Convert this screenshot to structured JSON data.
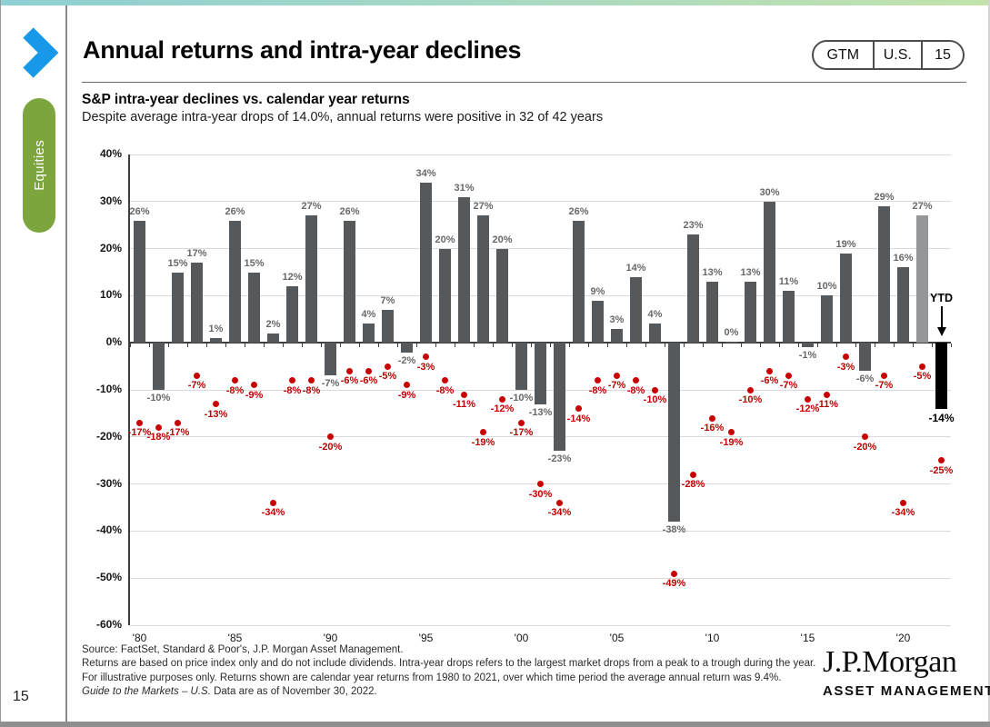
{
  "page": {
    "page_number": "15",
    "sidebar_label": "Equities",
    "header": {
      "title": "Annual returns and intra-year declines",
      "badge": [
        "GTM",
        "U.S.",
        "15"
      ]
    },
    "subtitle_bold": "S&P intra-year declines vs. calendar year returns",
    "subtitle": "Despite average intra-year drops of 14.0%, annual returns were positive in 32 of 42 years",
    "footer": {
      "line1": "Source: FactSet, Standard & Poor's, J.P. Morgan Asset Management.",
      "line2": "Returns are based on price index only and do not include dividends. Intra-year drops refers to the largest market drops from a peak to a trough during the year. For illustrative purposes only. Returns shown are calendar year returns from 1980 to 2021, over which time period the average annual return was 9.4%.",
      "line3_italic": "Guide to the Markets – U.S.",
      "line3_rest": " Data are as of November 30, 2022."
    },
    "logo": {
      "name": "J.P.Morgan",
      "sub": "ASSET MANAGEMENT"
    }
  },
  "chart_data": {
    "type": "bar",
    "title": "S&P intra-year declines vs. calendar year returns",
    "subtitle": "Despite average intra-year drops of 14.0%, annual returns were positive in 32 of 42 years",
    "xlabel": "",
    "ylabel": "",
    "ylim": [
      -60,
      40
    ],
    "grid": true,
    "y_ticks": [
      40,
      30,
      20,
      10,
      0,
      -10,
      -20,
      -30,
      -40,
      -50,
      -60
    ],
    "x_ticks": [
      {
        "label": "'80",
        "index": 0
      },
      {
        "label": "'85",
        "index": 5
      },
      {
        "label": "'90",
        "index": 10
      },
      {
        "label": "'95",
        "index": 15
      },
      {
        "label": "'00",
        "index": 20
      },
      {
        "label": "'05",
        "index": 25
      },
      {
        "label": "'10",
        "index": 30
      },
      {
        "label": "'15",
        "index": 35
      },
      {
        "label": "'20",
        "index": 40
      }
    ],
    "ytd_label": "YTD",
    "colors": {
      "bar": "#56595c",
      "bar_light": "#949698",
      "bar_ytd": "#000000",
      "dot": "#c80000",
      "dot_label": "#c00000",
      "bar_label": "#67686b",
      "sidebar_green": "#7da53d",
      "chevron_blue": "#1898e8"
    },
    "years": [
      {
        "year": 1980,
        "return": 26,
        "decline": -17
      },
      {
        "year": 1981,
        "return": -10,
        "decline": -18
      },
      {
        "year": 1982,
        "return": 15,
        "decline": -17
      },
      {
        "year": 1983,
        "return": 17,
        "decline": -7
      },
      {
        "year": 1984,
        "return": 1,
        "decline": -13
      },
      {
        "year": 1985,
        "return": 26,
        "decline": -8
      },
      {
        "year": 1986,
        "return": 15,
        "decline": -9
      },
      {
        "year": 1987,
        "return": 2,
        "decline": -34
      },
      {
        "year": 1988,
        "return": 12,
        "decline": -8
      },
      {
        "year": 1989,
        "return": 27,
        "decline": -8
      },
      {
        "year": 1990,
        "return": -7,
        "decline": -20
      },
      {
        "year": 1991,
        "return": 26,
        "decline": -6
      },
      {
        "year": 1992,
        "return": 4,
        "decline": -6
      },
      {
        "year": 1993,
        "return": 7,
        "decline": -5
      },
      {
        "year": 1994,
        "return": -2,
        "decline": -9
      },
      {
        "year": 1995,
        "return": 34,
        "decline": -3
      },
      {
        "year": 1996,
        "return": 20,
        "decline": -8
      },
      {
        "year": 1997,
        "return": 31,
        "decline": -11
      },
      {
        "year": 1998,
        "return": 27,
        "decline": -19
      },
      {
        "year": 1999,
        "return": 20,
        "decline": -12
      },
      {
        "year": 2000,
        "return": -10,
        "decline": -17
      },
      {
        "year": 2001,
        "return": -13,
        "decline": -30
      },
      {
        "year": 2002,
        "return": -23,
        "decline": -34
      },
      {
        "year": 2003,
        "return": 26,
        "decline": -14
      },
      {
        "year": 2004,
        "return": 9,
        "decline": -8
      },
      {
        "year": 2005,
        "return": 3,
        "decline": -7
      },
      {
        "year": 2006,
        "return": 14,
        "decline": -8
      },
      {
        "year": 2007,
        "return": 4,
        "decline": -10
      },
      {
        "year": 2008,
        "return": -38,
        "decline": -49
      },
      {
        "year": 2009,
        "return": 23,
        "decline": -28
      },
      {
        "year": 2010,
        "return": 13,
        "decline": -16
      },
      {
        "year": 2011,
        "return": 0,
        "decline": -19
      },
      {
        "year": 2012,
        "return": 13,
        "decline": -10
      },
      {
        "year": 2013,
        "return": 30,
        "decline": -6
      },
      {
        "year": 2014,
        "return": 11,
        "decline": -7
      },
      {
        "year": 2015,
        "return": -1,
        "decline": -12
      },
      {
        "year": 2016,
        "return": 10,
        "decline": -11
      },
      {
        "year": 2017,
        "return": 19,
        "decline": -3
      },
      {
        "year": 2018,
        "return": -6,
        "decline": -20
      },
      {
        "year": 2019,
        "return": 29,
        "decline": -7
      },
      {
        "year": 2020,
        "return": 16,
        "decline": -34
      },
      {
        "year": 2021,
        "return": 27,
        "decline": -5,
        "style": "light"
      },
      {
        "year": 2022,
        "return": -14,
        "decline": -25,
        "style": "ytd"
      }
    ]
  }
}
